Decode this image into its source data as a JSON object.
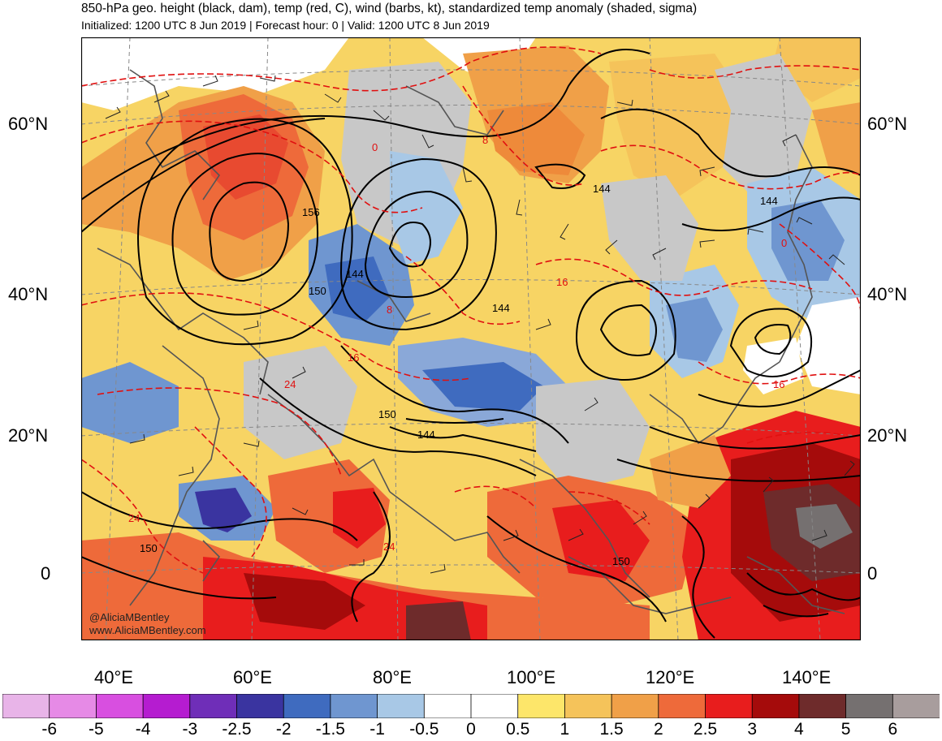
{
  "title": "850-hPa geo. height (black, dam), temp (red, C), wind (barbs, kt), standardized temp anomaly (shaded, sigma)",
  "subtitle": "Initialized: 1200 UTC 8 Jun 2019 | Forecast hour: 0 | Valid: 1200 UTC 8 Jun 2019",
  "lat_labels": [
    "60°N",
    "40°N",
    "20°N",
    "0"
  ],
  "lon_labels": [
    "40°E",
    "60°E",
    "80°E",
    "100°E",
    "120°E",
    "140°E"
  ],
  "height_labels": [
    "156",
    "150",
    "144",
    "144",
    "144",
    "144",
    "150",
    "144",
    "150",
    "150"
  ],
  "temp_labels": [
    "0",
    "8",
    "8",
    "16",
    "16",
    "24",
    "24",
    "16",
    "0",
    "24"
  ],
  "credit": {
    "twitter": "@AliciaMBentley",
    "web": "www.AliciaMBentley.com"
  },
  "colorbar": {
    "labels": [
      "-6",
      "-5",
      "-4",
      "-3",
      "-2.5",
      "-2",
      "-1.5",
      "-1",
      "-0.5",
      "0",
      "0.5",
      "1",
      "1.5",
      "2",
      "2.5",
      "3",
      "4",
      "5",
      "6"
    ],
    "colors": [
      "#e8b4e8",
      "#e68ae6",
      "#d84fe0",
      "#b51cd0",
      "#6f2eb8",
      "#3a34a0",
      "#3f6bbf",
      "#6f96d0",
      "#a8c8e6",
      "#ffffff",
      "#ffffff",
      "#fde66a",
      "#f5c35a",
      "#f0a048",
      "#ee6a3a",
      "#e81d1d",
      "#a50b0b",
      "#6e2b2b",
      "#757070",
      "#a89d9d"
    ]
  },
  "colors": {
    "height_contour": "#000000",
    "temp_contour": "#e01010",
    "coast": "#555555",
    "grid": "#888888"
  }
}
